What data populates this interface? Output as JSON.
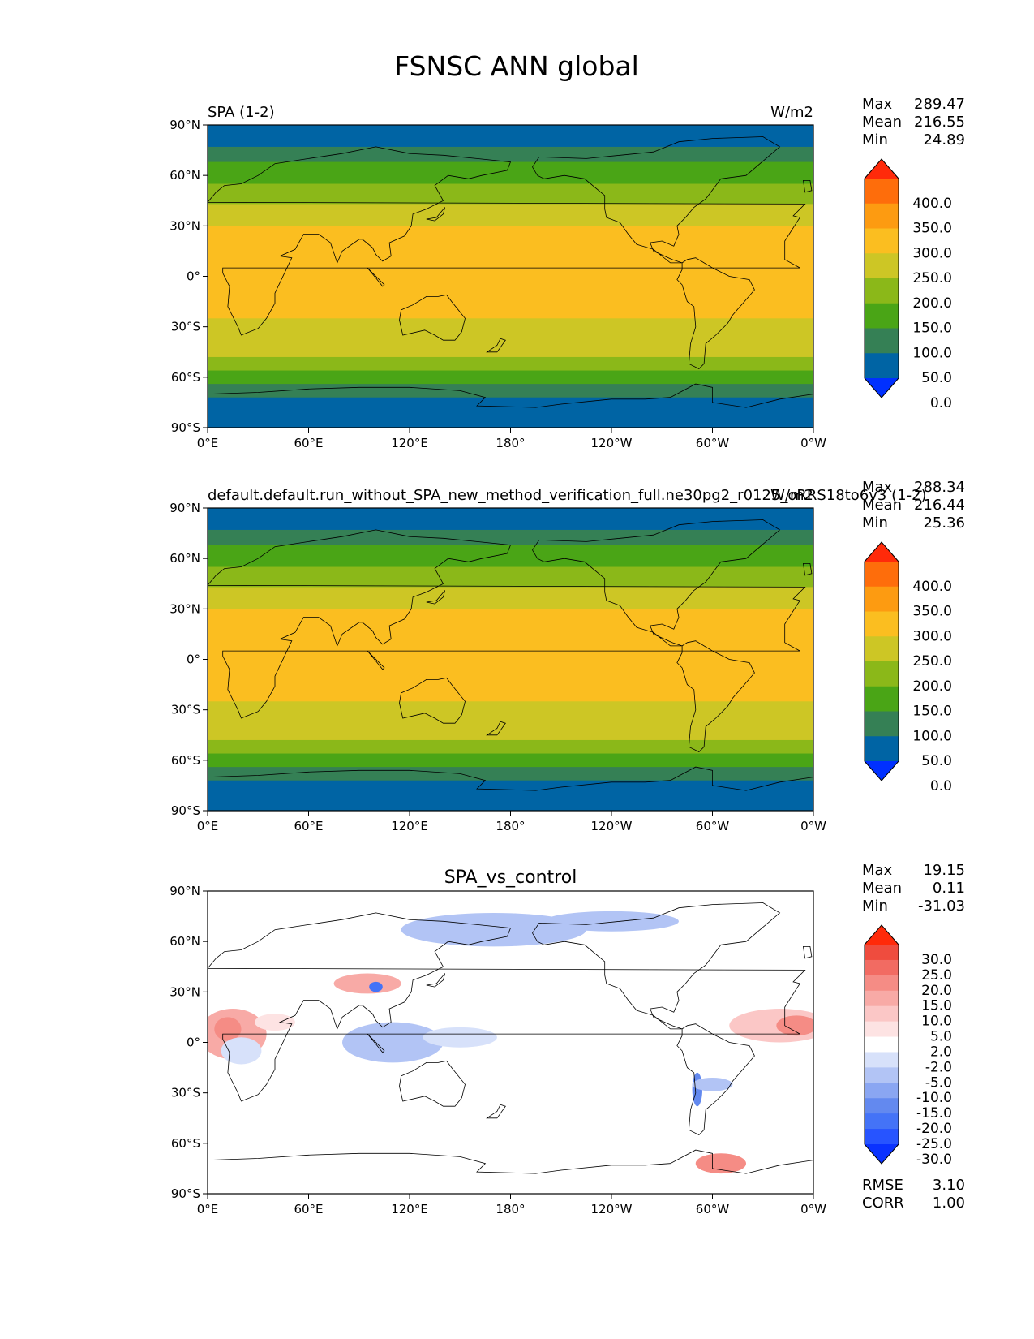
{
  "title": "FSNSC ANN global",
  "colors": {
    "field": [
      "#0030ff",
      "#0064a4",
      "#358055",
      "#4aa516",
      "#8bb819",
      "#cdc625",
      "#fbbe20",
      "#fd9b11",
      "#fe6d0b",
      "#ff2a0a"
    ],
    "diff": [
      "#0a32ff",
      "#2754ff",
      "#4473f7",
      "#6389ef",
      "#8aa6f2",
      "#b2c4f5",
      "#d7e1fa",
      "#ffffff",
      "#fde3e3",
      "#fbc7c6",
      "#f8aaa6",
      "#f58c85",
      "#f26b62",
      "#ef4c3e",
      "#ff2a0a"
    ],
    "land_outline": "#000000"
  },
  "chart_data": [
    {
      "type": "heatmap",
      "name": "panel-test",
      "left_title": "SPA (1-2)",
      "right_title": "W/m2",
      "xticks": [
        "0°E",
        "60°E",
        "120°E",
        "180°",
        "120°W",
        "60°W",
        "0°W"
      ],
      "yticks": [
        "90°N",
        "60°N",
        "30°N",
        "0°",
        "30°S",
        "60°S",
        "90°S"
      ],
      "stats": {
        "labels": [
          "Max",
          "Mean",
          "Min"
        ],
        "values": [
          "289.47",
          "216.55",
          "24.89"
        ]
      },
      "colorbar": {
        "levels": [
          "400.0",
          "350.0",
          "300.0",
          "250.0",
          "200.0",
          "150.0",
          "100.0",
          "50.0",
          "0.0"
        ],
        "palette": "field",
        "extend": "both"
      },
      "bands": [
        {
          "lat_from": 90,
          "lat_to": 77,
          "level": 1
        },
        {
          "lat_from": 77,
          "lat_to": 68,
          "level": 2
        },
        {
          "lat_from": 68,
          "lat_to": 55,
          "level": 3
        },
        {
          "lat_from": 55,
          "lat_to": 43,
          "level": 4
        },
        {
          "lat_from": 43,
          "lat_to": 30,
          "level": 5
        },
        {
          "lat_from": 30,
          "lat_to": -25,
          "level": 6
        },
        {
          "lat_from": -25,
          "lat_to": -48,
          "level": 5
        },
        {
          "lat_from": -48,
          "lat_to": -56,
          "level": 4
        },
        {
          "lat_from": -56,
          "lat_to": -64,
          "level": 3
        },
        {
          "lat_from": -64,
          "lat_to": -72,
          "level": 2
        },
        {
          "lat_from": -72,
          "lat_to": -90,
          "level": 1
        }
      ]
    },
    {
      "type": "heatmap",
      "name": "panel-reference",
      "left_title": "default.default.run_without_SPA_new_method_verification_full.ne30pg2_r0125_oRRS18to6v3 (1-2)",
      "right_title": "W/m2",
      "xticks": [
        "0°E",
        "60°E",
        "120°E",
        "180°",
        "120°W",
        "60°W",
        "0°W"
      ],
      "yticks": [
        "90°N",
        "60°N",
        "30°N",
        "0°",
        "30°S",
        "60°S",
        "90°S"
      ],
      "stats": {
        "labels": [
          "Max",
          "Mean",
          "Min"
        ],
        "values": [
          "288.34",
          "216.44",
          "25.36"
        ]
      },
      "colorbar": {
        "levels": [
          "400.0",
          "350.0",
          "300.0",
          "250.0",
          "200.0",
          "150.0",
          "100.0",
          "50.0",
          "0.0"
        ],
        "palette": "field",
        "extend": "both"
      },
      "bands": [
        {
          "lat_from": 90,
          "lat_to": 77,
          "level": 1
        },
        {
          "lat_from": 77,
          "lat_to": 68,
          "level": 2
        },
        {
          "lat_from": 68,
          "lat_to": 55,
          "level": 3
        },
        {
          "lat_from": 55,
          "lat_to": 43,
          "level": 4
        },
        {
          "lat_from": 43,
          "lat_to": 30,
          "level": 5
        },
        {
          "lat_from": 30,
          "lat_to": -25,
          "level": 6
        },
        {
          "lat_from": -25,
          "lat_to": -48,
          "level": 5
        },
        {
          "lat_from": -48,
          "lat_to": -56,
          "level": 4
        },
        {
          "lat_from": -56,
          "lat_to": -64,
          "level": 3
        },
        {
          "lat_from": -64,
          "lat_to": -72,
          "level": 2
        },
        {
          "lat_from": -72,
          "lat_to": -90,
          "level": 1
        }
      ]
    },
    {
      "type": "heatmap",
      "name": "panel-difference",
      "center_title": "SPA_vs_control",
      "xticks": [
        "0°E",
        "60°E",
        "120°E",
        "180°",
        "120°W",
        "60°W",
        "0°W"
      ],
      "yticks": [
        "90°N",
        "60°N",
        "30°N",
        "0°",
        "30°S",
        "60°S",
        "90°S"
      ],
      "stats": {
        "labels": [
          "Max",
          "Mean",
          "Min"
        ],
        "values": [
          "19.15",
          "0.11",
          "-31.03"
        ]
      },
      "colorbar": {
        "levels": [
          "30.0",
          "25.0",
          "20.0",
          "15.0",
          "10.0",
          "5.0",
          "2.0",
          "-2.0",
          "-5.0",
          "-10.0",
          "-15.0",
          "-20.0",
          "-25.0",
          "-30.0"
        ],
        "palette": "diff",
        "extend": "both"
      },
      "metrics": {
        "labels": [
          "RMSE",
          "CORR"
        ],
        "values": [
          "3.10",
          "1.00"
        ]
      },
      "blobs": [
        {
          "lon": 15,
          "lat": 5,
          "rlon": 20,
          "rlat": 15,
          "level": 10
        },
        {
          "lon": 12,
          "lat": 8,
          "rlon": 8,
          "rlat": 7,
          "level": 11
        },
        {
          "lon": 95,
          "lat": 35,
          "rlon": 20,
          "rlat": 6,
          "level": 10
        },
        {
          "lon": 100,
          "lat": 33,
          "rlon": 4,
          "rlat": 3,
          "level": 2
        },
        {
          "lon": 340,
          "lat": 10,
          "rlon": 30,
          "rlat": 10,
          "level": 9
        },
        {
          "lon": 350,
          "lat": 10,
          "rlon": 12,
          "rlat": 6,
          "level": 11
        },
        {
          "lon": 305,
          "lat": -72,
          "rlon": 15,
          "rlat": 6,
          "level": 11
        },
        {
          "lon": 110,
          "lat": 0,
          "rlon": 30,
          "rlat": 12,
          "level": 5
        },
        {
          "lon": 150,
          "lat": 3,
          "rlon": 22,
          "rlat": 6,
          "level": 6
        },
        {
          "lon": 170,
          "lat": 67,
          "rlon": 55,
          "rlat": 10,
          "level": 5
        },
        {
          "lon": 240,
          "lat": 72,
          "rlon": 40,
          "rlat": 6,
          "level": 5
        },
        {
          "lon": 291,
          "lat": -28,
          "rlon": 3,
          "rlat": 10,
          "level": 3
        },
        {
          "lon": 300,
          "lat": -25,
          "rlon": 12,
          "rlat": 4,
          "level": 5
        },
        {
          "lon": 40,
          "lat": 12,
          "rlon": 12,
          "rlat": 5,
          "level": 8
        },
        {
          "lon": 20,
          "lat": -5,
          "rlon": 12,
          "rlat": 8,
          "level": 6
        }
      ]
    }
  ]
}
